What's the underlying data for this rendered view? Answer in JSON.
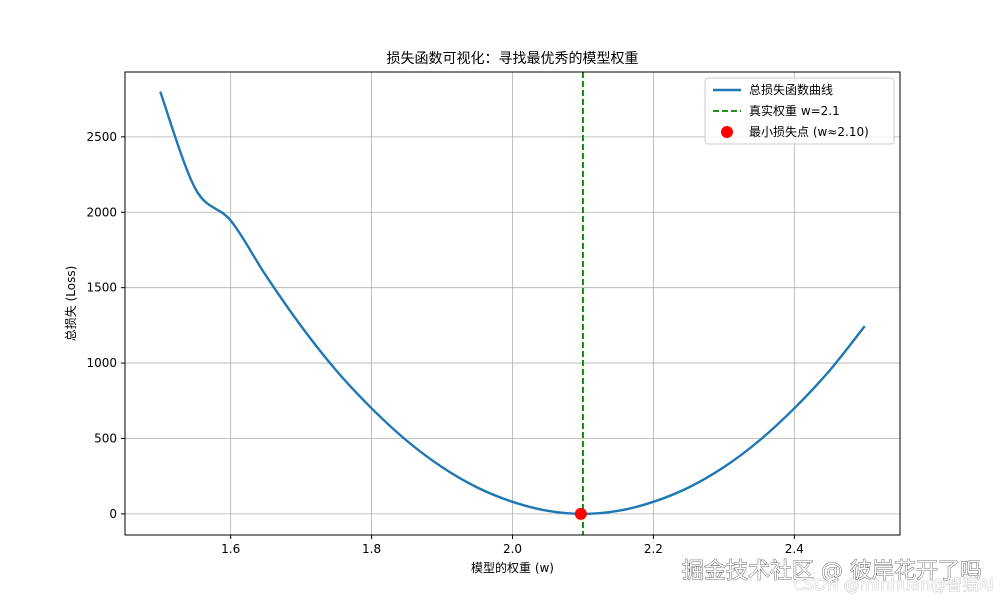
{
  "chart_data": {
    "type": "line",
    "title": "损失函数可视化：寻找最优秀的模型权重",
    "xlabel": "模型的权重 (w)",
    "ylabel": "总损失 (Loss)",
    "xlim": [
      1.45,
      2.55
    ],
    "ylim": [
      -140,
      2930
    ],
    "xticks": [
      1.6,
      1.8,
      2.0,
      2.2,
      2.4
    ],
    "xtick_labels": [
      "1.6",
      "1.8",
      "2.0",
      "2.2",
      "2.4"
    ],
    "yticks": [
      0,
      500,
      1000,
      1500,
      2000,
      2500
    ],
    "ytick_labels": [
      "0",
      "500",
      "1000",
      "1500",
      "2000",
      "2500"
    ],
    "grid": true,
    "legend_position": "top-right",
    "series": [
      {
        "name": "总损失函数曲线",
        "kind": "line",
        "color": "#1f77b4",
        "x": [
          1.5,
          1.55,
          1.6,
          1.65,
          1.7,
          1.75,
          1.8,
          1.85,
          1.9,
          1.95,
          2.0,
          2.05,
          2.1,
          2.15,
          2.2,
          2.25,
          2.3,
          2.35,
          2.4,
          2.45,
          2.5
        ],
        "y": [
          2800,
          2155,
          1945,
          1580,
          1245,
          950,
          700,
          485,
          310,
          175,
          80,
          20,
          0,
          20,
          80,
          175,
          310,
          485,
          700,
          950,
          1245
        ]
      },
      {
        "name": "真实权重 w=2.1",
        "kind": "vline",
        "color": "#008000",
        "x": 2.1
      },
      {
        "name": "最小损失点 (w≈2.10)",
        "kind": "point",
        "color": "#ff0000",
        "x": 2.097,
        "y": 0
      }
    ]
  },
  "watermark": {
    "main": "掘金技术社区 @ 彼岸花开了吗",
    "sub": "CSDN @minhuan@智猫AI"
  }
}
